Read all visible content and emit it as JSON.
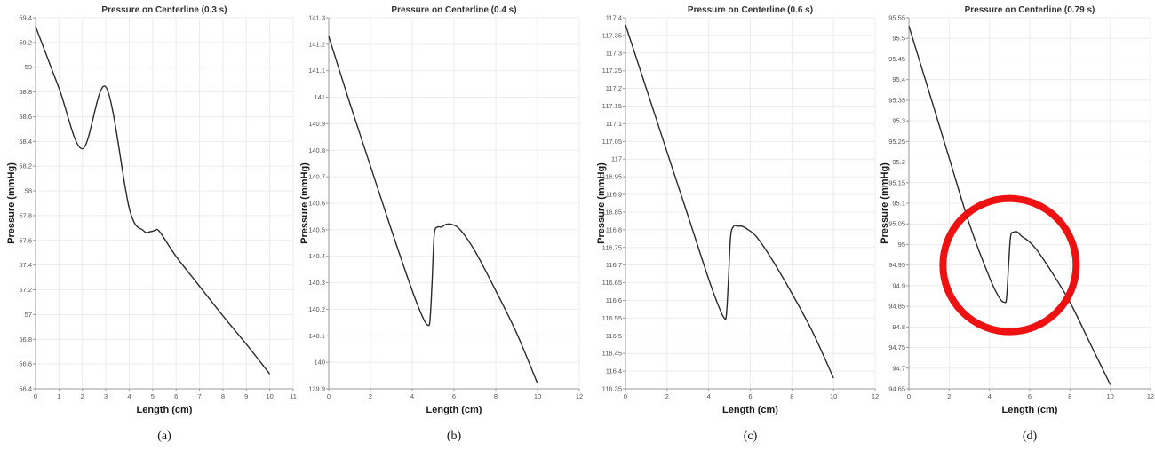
{
  "chart_data": [
    {
      "type": "line",
      "panel_label": "(a)",
      "title": "Pressure on Centerline (0.3 s)",
      "xlabel": "Length (cm)",
      "ylabel": "Pressure (mmHg)",
      "xlim": [
        0,
        11
      ],
      "ylim": [
        56.4,
        59.4
      ],
      "xticks": [
        0,
        1,
        2,
        3,
        4,
        5,
        6,
        7,
        8,
        9,
        10,
        11
      ],
      "yticks": [
        56.4,
        56.6,
        56.8,
        57,
        57.2,
        57.4,
        57.6,
        57.8,
        58,
        58.2,
        58.4,
        58.6,
        58.8,
        59,
        59.2,
        59.4
      ],
      "grid": true,
      "line_color": "#2b2b2b",
      "series": [
        {
          "x": [
            0,
            1,
            2,
            3,
            4,
            4.6,
            4.9,
            5.1,
            5.3,
            6,
            7,
            8,
            9,
            10
          ],
          "y": [
            59.33,
            58.83,
            58.34,
            58.84,
            57.86,
            57.68,
            57.67,
            57.68,
            57.67,
            57.47,
            57.23,
            56.99,
            56.76,
            56.52
          ]
        }
      ]
    },
    {
      "type": "line",
      "panel_label": "(b)",
      "title": "Pressure on Centerline (0.4 s)",
      "xlabel": "Length (cm)",
      "ylabel": "Pressure (mmHg)",
      "xlim": [
        0,
        12
      ],
      "ylim": [
        139.9,
        141.3
      ],
      "xticks": [
        0,
        2,
        4,
        6,
        8,
        10,
        12
      ],
      "yticks": [
        139.9,
        140,
        140.1,
        140.2,
        140.3,
        140.4,
        140.5,
        140.6,
        140.7,
        140.8,
        140.9,
        141,
        141.1,
        141.2,
        141.3
      ],
      "grid": true,
      "line_color": "#2b2b2b",
      "series": [
        {
          "x": [
            0,
            1,
            2,
            3,
            4,
            4.5,
            4.75,
            4.85,
            4.95,
            5.05,
            5.2,
            5.4,
            5.6,
            5.9,
            6.3,
            7,
            8,
            9,
            10
          ],
          "y": [
            141.23,
            140.98,
            140.74,
            140.5,
            140.27,
            140.17,
            140.14,
            140.16,
            140.3,
            140.48,
            140.51,
            140.51,
            140.52,
            140.52,
            140.5,
            140.42,
            140.27,
            140.11,
            139.92
          ]
        }
      ]
    },
    {
      "type": "line",
      "panel_label": "(c)",
      "title": "Pressure on Centerline (0.6 s)",
      "xlabel": "Length (cm)",
      "ylabel": "Pressure (mmHg)",
      "xlim": [
        0,
        12
      ],
      "ylim": [
        116.35,
        117.4
      ],
      "xticks": [
        0,
        2,
        4,
        6,
        8,
        10,
        12
      ],
      "yticks": [
        116.35,
        116.4,
        116.45,
        116.5,
        116.55,
        116.6,
        116.65,
        116.7,
        116.75,
        116.8,
        116.85,
        116.9,
        116.95,
        117,
        117.05,
        117.1,
        117.15,
        117.2,
        117.25,
        117.3,
        117.35,
        117.4
      ],
      "grid": true,
      "line_color": "#2b2b2b",
      "series": [
        {
          "x": [
            0,
            1,
            2,
            3,
            4,
            4.5,
            4.75,
            4.85,
            4.95,
            5.05,
            5.2,
            5.4,
            5.6,
            5.9,
            6.3,
            7,
            8,
            9,
            10
          ],
          "y": [
            117.38,
            117.2,
            117.02,
            116.84,
            116.66,
            116.58,
            116.55,
            116.56,
            116.66,
            116.78,
            116.81,
            116.81,
            116.81,
            116.8,
            116.78,
            116.72,
            116.62,
            116.51,
            116.38
          ]
        }
      ]
    },
    {
      "type": "line",
      "panel_label": "(d)",
      "title": "Pressure on Centerline (0.79 s)",
      "xlabel": "Length (cm)",
      "ylabel": "Pressure (mmHg)",
      "xlim": [
        0,
        12
      ],
      "ylim": [
        94.65,
        95.55
      ],
      "xticks": [
        0,
        2,
        4,
        6,
        8,
        10,
        12
      ],
      "yticks": [
        94.65,
        94.7,
        94.75,
        94.8,
        94.85,
        94.9,
        94.95,
        95,
        95.05,
        95.1,
        95.15,
        95.2,
        95.25,
        95.3,
        95.35,
        95.4,
        95.45,
        95.5,
        95.55
      ],
      "grid": true,
      "line_color": "#2b2b2b",
      "highlight_color": "#ee1111",
      "series": [
        {
          "x": [
            0,
            1,
            2,
            3,
            4,
            4.5,
            4.75,
            4.85,
            4.95,
            5.05,
            5.2,
            5.4,
            5.6,
            5.9,
            6.3,
            7,
            8,
            9,
            10
          ],
          "y": [
            95.53,
            95.37,
            95.21,
            95.05,
            94.92,
            94.87,
            94.86,
            94.87,
            94.95,
            95.02,
            95.03,
            95.03,
            95.02,
            95.01,
            94.99,
            94.94,
            94.86,
            94.76,
            94.66
          ]
        }
      ],
      "highlight_circle": {
        "x": 5,
        "y": 94.95
      }
    }
  ]
}
